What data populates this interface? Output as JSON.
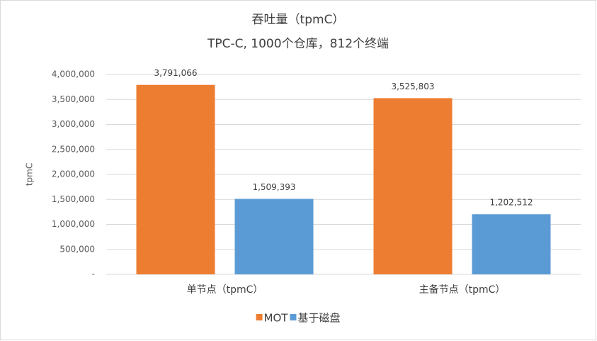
{
  "chart_data": {
    "type": "bar",
    "title": "吞吐量（tpmC）",
    "subtitle": "TPC-C, 1000个仓库，812个终端",
    "y_label": "tpmC",
    "categories": [
      "单节点（tpmC）",
      "主备节点（tpmC）"
    ],
    "series": [
      {
        "name": "MOT",
        "color": "#ed7d31",
        "values": [
          3791066,
          3525803
        ],
        "value_labels": [
          "3,791,066",
          "3,525,803"
        ]
      },
      {
        "name": "基于磁盘",
        "color": "#5b9bd5",
        "values": [
          1509393,
          1202512
        ],
        "value_labels": [
          "1,509,393",
          "1,202,512"
        ]
      }
    ],
    "ylim": [
      0,
      4000000
    ],
    "yticks": [
      {
        "value": 0,
        "label": "-"
      },
      {
        "value": 500000,
        "label": "500,000"
      },
      {
        "value": 1000000,
        "label": "1,000,000"
      },
      {
        "value": 1500000,
        "label": "1,500,000"
      },
      {
        "value": 2000000,
        "label": "2,000,000"
      },
      {
        "value": 2500000,
        "label": "2,500,000"
      },
      {
        "value": 3000000,
        "label": "3,000,000"
      },
      {
        "value": 3500000,
        "label": "3,500,000"
      },
      {
        "value": 4000000,
        "label": "4,000,000"
      }
    ],
    "grid": true,
    "legend": "bottom"
  }
}
